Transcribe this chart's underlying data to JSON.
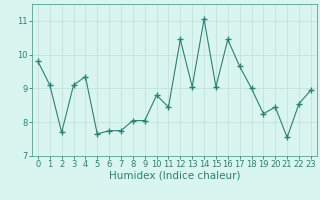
{
  "x": [
    0,
    1,
    2,
    3,
    4,
    5,
    6,
    7,
    8,
    9,
    10,
    11,
    12,
    13,
    14,
    15,
    16,
    17,
    18,
    19,
    20,
    21,
    22,
    23
  ],
  "y": [
    9.8,
    9.1,
    7.7,
    9.1,
    9.35,
    7.65,
    7.75,
    7.75,
    8.05,
    8.05,
    8.8,
    8.45,
    10.45,
    9.05,
    11.05,
    9.05,
    10.45,
    9.65,
    9.0,
    8.25,
    8.45,
    7.55,
    8.55,
    8.95
  ],
  "line_color": "#2e7f74",
  "marker": "+",
  "marker_size": 4,
  "bg_color": "#d9f5f0",
  "grid_color": "#c0ddd8",
  "xlabel": "Humidex (Indice chaleur)",
  "xlim": [
    -0.5,
    23.5
  ],
  "ylim": [
    7,
    11.5
  ],
  "yticks": [
    7,
    8,
    9,
    10,
    11
  ],
  "xticks": [
    0,
    1,
    2,
    3,
    4,
    5,
    6,
    7,
    8,
    9,
    10,
    11,
    12,
    13,
    14,
    15,
    16,
    17,
    18,
    19,
    20,
    21,
    22,
    23
  ],
  "tick_color": "#2e7f74",
  "label_color": "#2e7f74",
  "tick_fontsize": 6,
  "xlabel_fontsize": 7.5,
  "spine_color": "#5a9e94",
  "linewidth": 0.8,
  "markerwidth": 1.0
}
